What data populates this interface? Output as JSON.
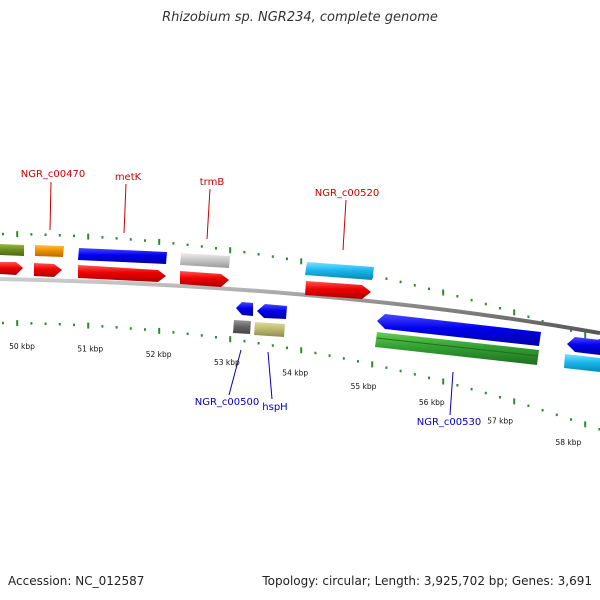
{
  "title": "Rhizobium sp. NGR234, complete genome",
  "footer": {
    "accession": "Accession: NC_012587",
    "summary": "Topology: circular; Length: 3,925,702 bp; Genes: 3,691"
  },
  "colors": {
    "backbone": "#888888",
    "tick": "#2f8a2f",
    "label_top": "#cc0000",
    "label_bottom": "#0000bb"
  },
  "ruler": [
    {
      "kbp": 50,
      "label": "50 kbp"
    },
    {
      "kbp": 51,
      "label": "51 kbp"
    },
    {
      "kbp": 52,
      "label": "52 kbp"
    },
    {
      "kbp": 53,
      "label": "53 kbp"
    },
    {
      "kbp": 54,
      "label": "54 kbp"
    },
    {
      "kbp": 55,
      "label": "55 kbp"
    },
    {
      "kbp": 56,
      "label": "56 kbp"
    },
    {
      "kbp": 57,
      "label": "57 kbp"
    },
    {
      "kbp": 58,
      "label": "58 kbp"
    }
  ],
  "labels_top": [
    {
      "name": "gene-label-ngr-c00470",
      "text": "NGR_c00470"
    },
    {
      "name": "gene-label-metk",
      "text": "metK"
    },
    {
      "name": "gene-label-trmb",
      "text": "trmB"
    },
    {
      "name": "gene-label-ngr-c00520",
      "text": "NGR_c00520"
    }
  ],
  "labels_bottom": [
    {
      "name": "gene-label-ngr-c00500",
      "text": "NGR_c00500"
    },
    {
      "name": "gene-label-hsph",
      "text": "hspH"
    },
    {
      "name": "gene-label-ngr-c00530",
      "text": "NGR_c00530"
    }
  ]
}
